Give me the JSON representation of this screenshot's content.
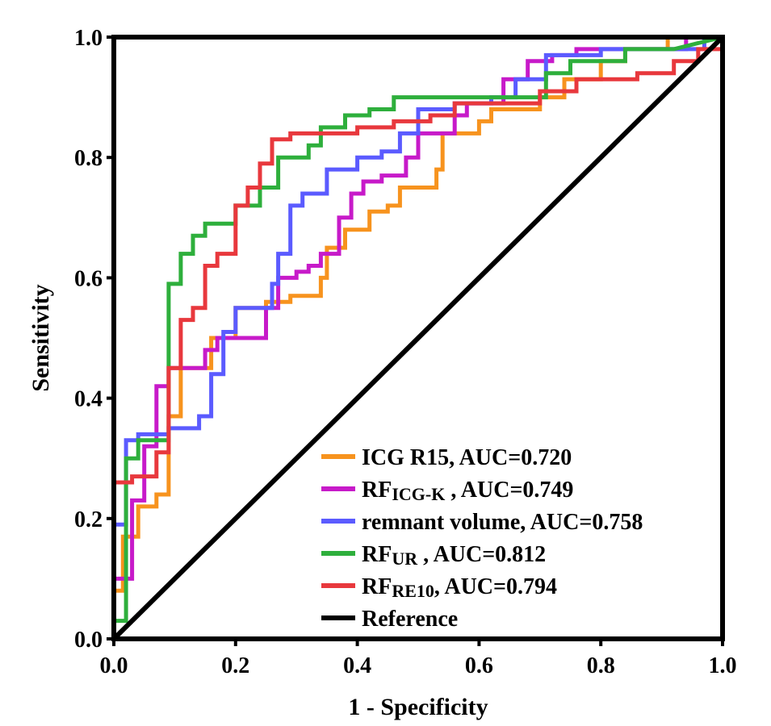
{
  "chart_data": {
    "type": "line",
    "title": "",
    "xlabel": "1 - Specificity",
    "ylabel": "Sensitivity",
    "xlim": [
      0,
      1
    ],
    "ylim": [
      0,
      1
    ],
    "xticks": [
      "0.0",
      "0.2",
      "0.4",
      "0.6",
      "0.8",
      "1.0"
    ],
    "yticks": [
      "0.0",
      "0.2",
      "0.4",
      "0.6",
      "0.8",
      "1.0"
    ],
    "legend_position": "bottom-right",
    "series": [
      {
        "name": "ICG R15",
        "legend_main": "ICG R15",
        "legend_sub": "",
        "legend_tail": ", AUC=0.720",
        "auc": 0.72,
        "color": "#f7931e",
        "points": [
          [
            0,
            0
          ],
          [
            0,
            0.08
          ],
          [
            0.015,
            0.08
          ],
          [
            0.015,
            0.17
          ],
          [
            0.04,
            0.17
          ],
          [
            0.04,
            0.22
          ],
          [
            0.07,
            0.22
          ],
          [
            0.07,
            0.24
          ],
          [
            0.09,
            0.24
          ],
          [
            0.09,
            0.37
          ],
          [
            0.11,
            0.37
          ],
          [
            0.11,
            0.45
          ],
          [
            0.16,
            0.45
          ],
          [
            0.16,
            0.5
          ],
          [
            0.2,
            0.5
          ],
          [
            0.2,
            0.55
          ],
          [
            0.25,
            0.55
          ],
          [
            0.25,
            0.56
          ],
          [
            0.29,
            0.56
          ],
          [
            0.29,
            0.57
          ],
          [
            0.34,
            0.57
          ],
          [
            0.34,
            0.6
          ],
          [
            0.35,
            0.6
          ],
          [
            0.35,
            0.65
          ],
          [
            0.38,
            0.65
          ],
          [
            0.38,
            0.68
          ],
          [
            0.42,
            0.68
          ],
          [
            0.42,
            0.71
          ],
          [
            0.45,
            0.71
          ],
          [
            0.45,
            0.72
          ],
          [
            0.47,
            0.72
          ],
          [
            0.47,
            0.75
          ],
          [
            0.53,
            0.75
          ],
          [
            0.53,
            0.78
          ],
          [
            0.54,
            0.78
          ],
          [
            0.54,
            0.84
          ],
          [
            0.6,
            0.84
          ],
          [
            0.6,
            0.86
          ],
          [
            0.62,
            0.86
          ],
          [
            0.62,
            0.88
          ],
          [
            0.7,
            0.88
          ],
          [
            0.7,
            0.9
          ],
          [
            0.74,
            0.9
          ],
          [
            0.74,
            0.93
          ],
          [
            0.8,
            0.93
          ],
          [
            0.8,
            0.96
          ],
          [
            0.84,
            0.96
          ],
          [
            0.84,
            0.98
          ],
          [
            0.91,
            0.98
          ],
          [
            0.91,
            1.0
          ],
          [
            1,
            1
          ]
        ]
      },
      {
        "name": "RF ICG-K",
        "legend_main": "RF",
        "legend_sub": "ICG-K",
        "legend_tail": " , AUC=0.749",
        "auc": 0.749,
        "color": "#c71ac9",
        "points": [
          [
            0,
            0
          ],
          [
            0,
            0.1
          ],
          [
            0.03,
            0.1
          ],
          [
            0.03,
            0.23
          ],
          [
            0.05,
            0.23
          ],
          [
            0.05,
            0.32
          ],
          [
            0.07,
            0.32
          ],
          [
            0.07,
            0.42
          ],
          [
            0.09,
            0.42
          ],
          [
            0.09,
            0.45
          ],
          [
            0.15,
            0.45
          ],
          [
            0.15,
            0.48
          ],
          [
            0.17,
            0.48
          ],
          [
            0.17,
            0.5
          ],
          [
            0.21,
            0.5
          ],
          [
            0.21,
            0.5
          ],
          [
            0.25,
            0.5
          ],
          [
            0.25,
            0.55
          ],
          [
            0.27,
            0.55
          ],
          [
            0.27,
            0.6
          ],
          [
            0.3,
            0.6
          ],
          [
            0.3,
            0.61
          ],
          [
            0.32,
            0.61
          ],
          [
            0.32,
            0.62
          ],
          [
            0.34,
            0.62
          ],
          [
            0.34,
            0.64
          ],
          [
            0.37,
            0.64
          ],
          [
            0.37,
            0.7
          ],
          [
            0.39,
            0.7
          ],
          [
            0.39,
            0.74
          ],
          [
            0.41,
            0.74
          ],
          [
            0.41,
            0.76
          ],
          [
            0.44,
            0.76
          ],
          [
            0.44,
            0.77
          ],
          [
            0.48,
            0.77
          ],
          [
            0.48,
            0.8
          ],
          [
            0.5,
            0.8
          ],
          [
            0.5,
            0.84
          ],
          [
            0.56,
            0.84
          ],
          [
            0.56,
            0.87
          ],
          [
            0.58,
            0.87
          ],
          [
            0.58,
            0.89
          ],
          [
            0.64,
            0.89
          ],
          [
            0.64,
            0.93
          ],
          [
            0.68,
            0.93
          ],
          [
            0.68,
            0.96
          ],
          [
            0.72,
            0.96
          ],
          [
            0.72,
            0.97
          ],
          [
            0.76,
            0.97
          ],
          [
            0.76,
            0.98
          ],
          [
            0.94,
            0.98
          ],
          [
            0.94,
            1.0
          ],
          [
            1,
            1
          ]
        ]
      },
      {
        "name": "remnant volume",
        "legend_main": "remnant volume",
        "legend_sub": "",
        "legend_tail": ", AUC=0.758",
        "auc": 0.758,
        "color": "#5b5bff",
        "points": [
          [
            0,
            0
          ],
          [
            0,
            0.19
          ],
          [
            0.02,
            0.19
          ],
          [
            0.02,
            0.33
          ],
          [
            0.04,
            0.33
          ],
          [
            0.04,
            0.34
          ],
          [
            0.09,
            0.34
          ],
          [
            0.09,
            0.35
          ],
          [
            0.14,
            0.35
          ],
          [
            0.14,
            0.37
          ],
          [
            0.16,
            0.37
          ],
          [
            0.16,
            0.44
          ],
          [
            0.18,
            0.44
          ],
          [
            0.18,
            0.51
          ],
          [
            0.2,
            0.51
          ],
          [
            0.2,
            0.55
          ],
          [
            0.24,
            0.55
          ],
          [
            0.24,
            0.55
          ],
          [
            0.26,
            0.55
          ],
          [
            0.26,
            0.59
          ],
          [
            0.27,
            0.59
          ],
          [
            0.27,
            0.64
          ],
          [
            0.29,
            0.64
          ],
          [
            0.29,
            0.72
          ],
          [
            0.31,
            0.72
          ],
          [
            0.31,
            0.74
          ],
          [
            0.35,
            0.74
          ],
          [
            0.35,
            0.78
          ],
          [
            0.4,
            0.78
          ],
          [
            0.4,
            0.8
          ],
          [
            0.44,
            0.8
          ],
          [
            0.44,
            0.81
          ],
          [
            0.47,
            0.81
          ],
          [
            0.47,
            0.84
          ],
          [
            0.5,
            0.84
          ],
          [
            0.5,
            0.88
          ],
          [
            0.56,
            0.88
          ],
          [
            0.56,
            0.89
          ],
          [
            0.62,
            0.89
          ],
          [
            0.62,
            0.9
          ],
          [
            0.66,
            0.9
          ],
          [
            0.66,
            0.93
          ],
          [
            0.71,
            0.93
          ],
          [
            0.71,
            0.97
          ],
          [
            0.8,
            0.97
          ],
          [
            0.8,
            0.98
          ],
          [
            0.97,
            0.98
          ],
          [
            0.97,
            1.0
          ],
          [
            1,
            1
          ]
        ]
      },
      {
        "name": "RF UR",
        "legend_main": "RF",
        "legend_sub": "UR",
        "legend_tail": " , AUC=0.812",
        "auc": 0.812,
        "color": "#2eaf3c",
        "points": [
          [
            0,
            0
          ],
          [
            0,
            0.03
          ],
          [
            0.02,
            0.03
          ],
          [
            0.02,
            0.3
          ],
          [
            0.04,
            0.3
          ],
          [
            0.04,
            0.33
          ],
          [
            0.09,
            0.33
          ],
          [
            0.09,
            0.59
          ],
          [
            0.11,
            0.59
          ],
          [
            0.11,
            0.64
          ],
          [
            0.13,
            0.64
          ],
          [
            0.13,
            0.67
          ],
          [
            0.15,
            0.67
          ],
          [
            0.15,
            0.69
          ],
          [
            0.2,
            0.69
          ],
          [
            0.2,
            0.72
          ],
          [
            0.24,
            0.72
          ],
          [
            0.24,
            0.75
          ],
          [
            0.27,
            0.75
          ],
          [
            0.27,
            0.8
          ],
          [
            0.32,
            0.8
          ],
          [
            0.32,
            0.82
          ],
          [
            0.34,
            0.82
          ],
          [
            0.34,
            0.85
          ],
          [
            0.38,
            0.85
          ],
          [
            0.38,
            0.87
          ],
          [
            0.42,
            0.87
          ],
          [
            0.42,
            0.88
          ],
          [
            0.46,
            0.88
          ],
          [
            0.46,
            0.9
          ],
          [
            0.6,
            0.9
          ],
          [
            0.6,
            0.9
          ],
          [
            0.71,
            0.9
          ],
          [
            0.71,
            0.94
          ],
          [
            0.75,
            0.94
          ],
          [
            0.75,
            0.96
          ],
          [
            0.84,
            0.96
          ],
          [
            0.84,
            0.98
          ],
          [
            0.92,
            0.98
          ],
          [
            0.92,
            0.98
          ],
          [
            1,
            1
          ]
        ]
      },
      {
        "name": "RF RE10",
        "legend_main": "RF",
        "legend_sub": "RE10",
        "legend_tail": ", AUC=0.794",
        "auc": 0.794,
        "color": "#e8383d",
        "points": [
          [
            0,
            0
          ],
          [
            0,
            0.26
          ],
          [
            0.03,
            0.26
          ],
          [
            0.03,
            0.27
          ],
          [
            0.07,
            0.27
          ],
          [
            0.07,
            0.31
          ],
          [
            0.09,
            0.31
          ],
          [
            0.09,
            0.45
          ],
          [
            0.11,
            0.45
          ],
          [
            0.11,
            0.53
          ],
          [
            0.13,
            0.53
          ],
          [
            0.13,
            0.55
          ],
          [
            0.15,
            0.55
          ],
          [
            0.15,
            0.62
          ],
          [
            0.17,
            0.62
          ],
          [
            0.17,
            0.64
          ],
          [
            0.2,
            0.64
          ],
          [
            0.2,
            0.72
          ],
          [
            0.22,
            0.72
          ],
          [
            0.22,
            0.75
          ],
          [
            0.24,
            0.75
          ],
          [
            0.24,
            0.79
          ],
          [
            0.26,
            0.79
          ],
          [
            0.26,
            0.83
          ],
          [
            0.29,
            0.83
          ],
          [
            0.29,
            0.84
          ],
          [
            0.31,
            0.84
          ],
          [
            0.31,
            0.84
          ],
          [
            0.4,
            0.84
          ],
          [
            0.4,
            0.85
          ],
          [
            0.46,
            0.85
          ],
          [
            0.46,
            0.86
          ],
          [
            0.52,
            0.86
          ],
          [
            0.52,
            0.87
          ],
          [
            0.56,
            0.87
          ],
          [
            0.56,
            0.89
          ],
          [
            0.7,
            0.89
          ],
          [
            0.7,
            0.91
          ],
          [
            0.76,
            0.91
          ],
          [
            0.76,
            0.93
          ],
          [
            0.86,
            0.93
          ],
          [
            0.86,
            0.94
          ],
          [
            0.92,
            0.94
          ],
          [
            0.92,
            0.96
          ],
          [
            0.96,
            0.96
          ],
          [
            0.96,
            0.98
          ],
          [
            1,
            0.98
          ],
          [
            1,
            1
          ]
        ]
      },
      {
        "name": "Reference",
        "legend_main": "Reference",
        "legend_sub": "",
        "legend_tail": "",
        "color": "#000000",
        "points": [
          [
            0,
            0
          ],
          [
            1,
            1
          ]
        ]
      }
    ]
  }
}
